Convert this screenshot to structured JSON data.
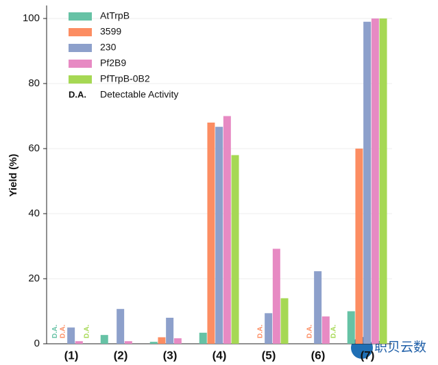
{
  "chart_data": {
    "type": "bar",
    "y_label": "Yield (%)",
    "categories": [
      "(1)",
      "(2)",
      "(3)",
      "(4)",
      "(5)",
      "(6)",
      "(7)"
    ],
    "series": [
      {
        "name": "AtTrpB",
        "color": "#66c2a5",
        "values": [
          null,
          2.7,
          0.6,
          3.4,
          null,
          null,
          10
        ],
        "value_labels": [
          "D.A.",
          null,
          null,
          null,
          null,
          null,
          null
        ]
      },
      {
        "name": "3599",
        "color": "#fc8d62",
        "values": [
          null,
          null,
          2,
          68,
          null,
          null,
          60
        ],
        "value_labels": [
          "D.A.",
          null,
          null,
          null,
          "D.A.",
          "D.A.",
          null
        ]
      },
      {
        "name": "230",
        "color": "#8da0cb",
        "values": [
          5,
          10.7,
          8,
          66.7,
          9.4,
          22.3,
          99
        ]
      },
      {
        "name": "Pf2B9",
        "color": "#e78ac3",
        "values": [
          0.8,
          0.8,
          1.7,
          70,
          29.2,
          8.4,
          100
        ]
      },
      {
        "name": "PfTrpB-0B2",
        "color": "#a6d854",
        "values": [
          null,
          null,
          null,
          58,
          14,
          null,
          100
        ],
        "value_labels": [
          "D.A.",
          null,
          null,
          null,
          null,
          "D.A.",
          null
        ]
      }
    ],
    "legend_note": {
      "key": "D.A.",
      "label": "Detectable Activity"
    },
    "ylim": [
      0,
      104
    ],
    "yticks": [
      0,
      20,
      40,
      60,
      80,
      100
    ],
    "grid": true,
    "legend": "upper left"
  },
  "watermark": "职贝云数"
}
